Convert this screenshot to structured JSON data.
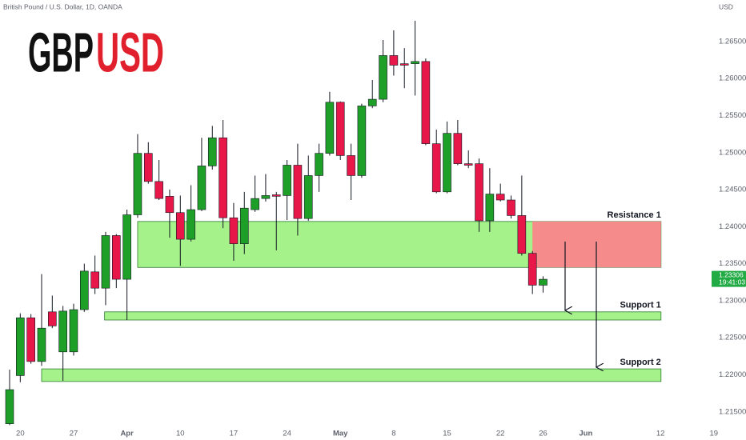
{
  "chart_data": {
    "type": "candlestick",
    "source": "British Pound / U.S. Dollar, 1D, OANDA",
    "currency": "USD",
    "title_parts": [
      "GBP",
      "USD"
    ],
    "title_colors": [
      "#111111",
      "#e0202d"
    ],
    "up_color": "#1e9f28",
    "down_color": "#e8174a",
    "open": [
      1.2134,
      1.2199,
      1.2277,
      1.2218,
      1.2285,
      1.2231,
      1.2231,
      1.2288,
      1.2339,
      1.2317,
      1.2388,
      1.2329,
      1.2416,
      1.2499,
      1.2461,
      1.2441,
      1.2419,
      1.2383,
      1.2423,
      1.2482,
      1.252,
      1.2412,
      1.2377,
      1.2423,
      1.2438,
      1.2443,
      1.2442,
      1.2483,
      1.2411,
      1.2469,
      1.2499,
      1.2568,
      1.2496,
      1.2469,
      1.2563,
      1.2572,
      1.2631,
      1.262,
      1.262,
      1.2623,
      1.2512,
      1.2447,
      1.2526,
      1.2485,
      1.2485,
      1.2408,
      1.2444,
      1.2436,
      1.2415,
      1.2364,
      1.2321
    ],
    "high": [
      1.2207,
      1.2283,
      1.2282,
      1.2336,
      1.2307,
      1.2293,
      1.2296,
      1.235,
      1.2361,
      1.2393,
      1.239,
      1.2423,
      1.2525,
      1.2514,
      1.249,
      1.245,
      1.2442,
      1.2456,
      1.252,
      1.2536,
      1.2544,
      1.2432,
      1.2447,
      1.2469,
      1.2471,
      1.2447,
      1.249,
      1.2512,
      1.2496,
      1.2512,
      1.2582,
      1.2569,
      1.2512,
      1.2566,
      1.2598,
      1.2652,
      1.2665,
      1.2641,
      1.2678,
      1.2627,
      1.2531,
      1.2542,
      1.2544,
      1.2503,
      1.2492,
      1.2479,
      1.2458,
      1.2442,
      1.2469,
      1.2367,
      1.2333
    ],
    "low": [
      1.2132,
      1.219,
      1.2215,
      1.2212,
      1.2263,
      1.2192,
      1.2226,
      1.2285,
      1.2309,
      1.2294,
      1.2317,
      1.2274,
      1.2412,
      1.2458,
      1.2436,
      1.2385,
      1.2347,
      1.238,
      1.2421,
      1.2477,
      1.2398,
      1.2354,
      1.2363,
      1.242,
      1.2434,
      1.2368,
      1.2409,
      1.2388,
      1.2408,
      1.2447,
      1.2496,
      1.249,
      1.2436,
      1.2466,
      1.256,
      1.2568,
      1.2604,
      1.2587,
      1.2577,
      1.251,
      1.2445,
      1.2445,
      1.2483,
      1.2479,
      1.2393,
      1.2393,
      1.2434,
      1.2411,
      1.2361,
      1.2309,
      1.2311
    ],
    "close": [
      1.218,
      1.2277,
      1.2218,
      1.2263,
      1.2266,
      1.2286,
      1.2288,
      1.234,
      1.2317,
      1.2388,
      1.2329,
      1.2416,
      1.2499,
      1.2461,
      1.2438,
      1.2419,
      1.2383,
      1.2423,
      1.2482,
      1.252,
      1.2412,
      1.2377,
      1.2425,
      1.2438,
      1.2442,
      1.2441,
      1.2483,
      1.2411,
      1.2469,
      1.2499,
      1.2568,
      1.2496,
      1.2469,
      1.2563,
      1.2572,
      1.2631,
      1.2618,
      1.2618,
      1.2623,
      1.2512,
      1.2447,
      1.2526,
      1.2485,
      1.2483,
      1.2408,
      1.2444,
      1.2436,
      1.2415,
      1.2364,
      1.2321,
      1.2329
    ],
    "ylim": [
      1.2112,
      1.2706
    ],
    "yticks": [
      {
        "value": 1.215,
        "label": "1.21500"
      },
      {
        "value": 1.22,
        "label": "1.22000"
      },
      {
        "value": 1.225,
        "label": "1.22500"
      },
      {
        "value": 1.23,
        "label": "1.23000"
      },
      {
        "value": 1.235,
        "label": "1.23500"
      },
      {
        "value": 1.24,
        "label": "1.24000"
      },
      {
        "value": 1.245,
        "label": "1.24500"
      },
      {
        "value": 1.25,
        "label": "1.25000"
      },
      {
        "value": 1.255,
        "label": "1.25500"
      },
      {
        "value": 1.26,
        "label": "1.26000"
      },
      {
        "value": 1.265,
        "label": "1.26500"
      }
    ],
    "xlim": [
      -0.9,
      66.24
    ],
    "xticks": [
      {
        "value": 1,
        "label": "20"
      },
      {
        "value": 6,
        "label": "27"
      },
      {
        "value": 11,
        "label": "Apr"
      },
      {
        "value": 16,
        "label": "10"
      },
      {
        "value": 21,
        "label": "17"
      },
      {
        "value": 26,
        "label": "24"
      },
      {
        "value": 31,
        "label": "May"
      },
      {
        "value": 36,
        "label": "8"
      },
      {
        "value": 41,
        "label": "15"
      },
      {
        "value": 46,
        "label": "22"
      },
      {
        "value": 50,
        "label": "26"
      },
      {
        "value": 54,
        "label": "Jun"
      },
      {
        "value": 61,
        "label": "12"
      },
      {
        "value": 66,
        "label": "19"
      }
    ],
    "last_price": 1.23306,
    "countdown": "19:41:03",
    "last_price_color": "#22ab45",
    "zones": [
      {
        "label": "Resistance 1",
        "top": 1.2407,
        "bottom": 1.2345,
        "color": "#a5f28a"
      },
      {
        "top": 1.2407,
        "bottom": 1.2345,
        "color": "#f58b8b"
      },
      {
        "label": "Support 1",
        "top": 1.2285,
        "bottom": 1.2274,
        "color": "#a5f28a"
      },
      {
        "label": "Support 2",
        "top": 1.2208,
        "bottom": 1.2191,
        "color": "#a5f28a"
      }
    ]
  }
}
